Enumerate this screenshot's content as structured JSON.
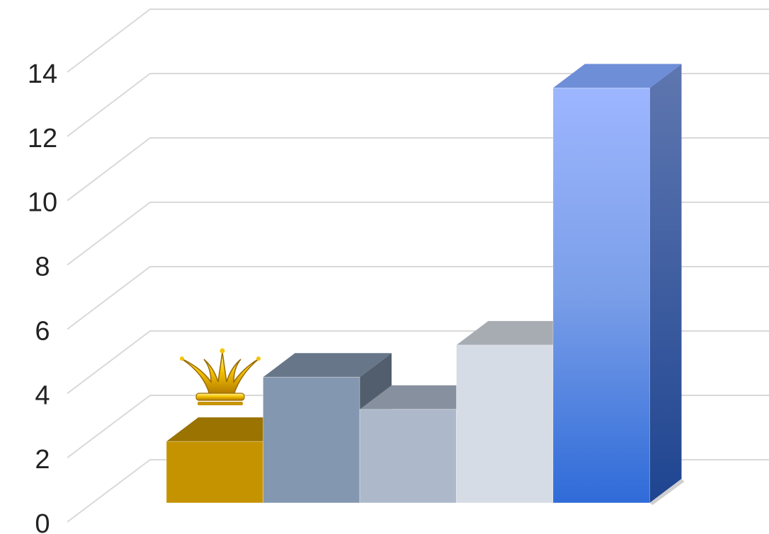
{
  "chart_data": {
    "type": "bar",
    "style": "3d-column",
    "categories": [
      "",
      "",
      "",
      "",
      ""
    ],
    "values": [
      2,
      4,
      3,
      5,
      13
    ],
    "colors": [
      "#c59300",
      "#8497b0",
      "#adb9ca",
      "#d6dce5",
      "#4472c4"
    ],
    "ylim": [
      0,
      14
    ],
    "yticks": [
      "0",
      "2",
      "4",
      "6",
      "8",
      "10",
      "12",
      "14"
    ],
    "grid": true,
    "legend": "none",
    "title": "",
    "xlabel": "",
    "ylabel": "",
    "decoration": "crown-icon"
  }
}
